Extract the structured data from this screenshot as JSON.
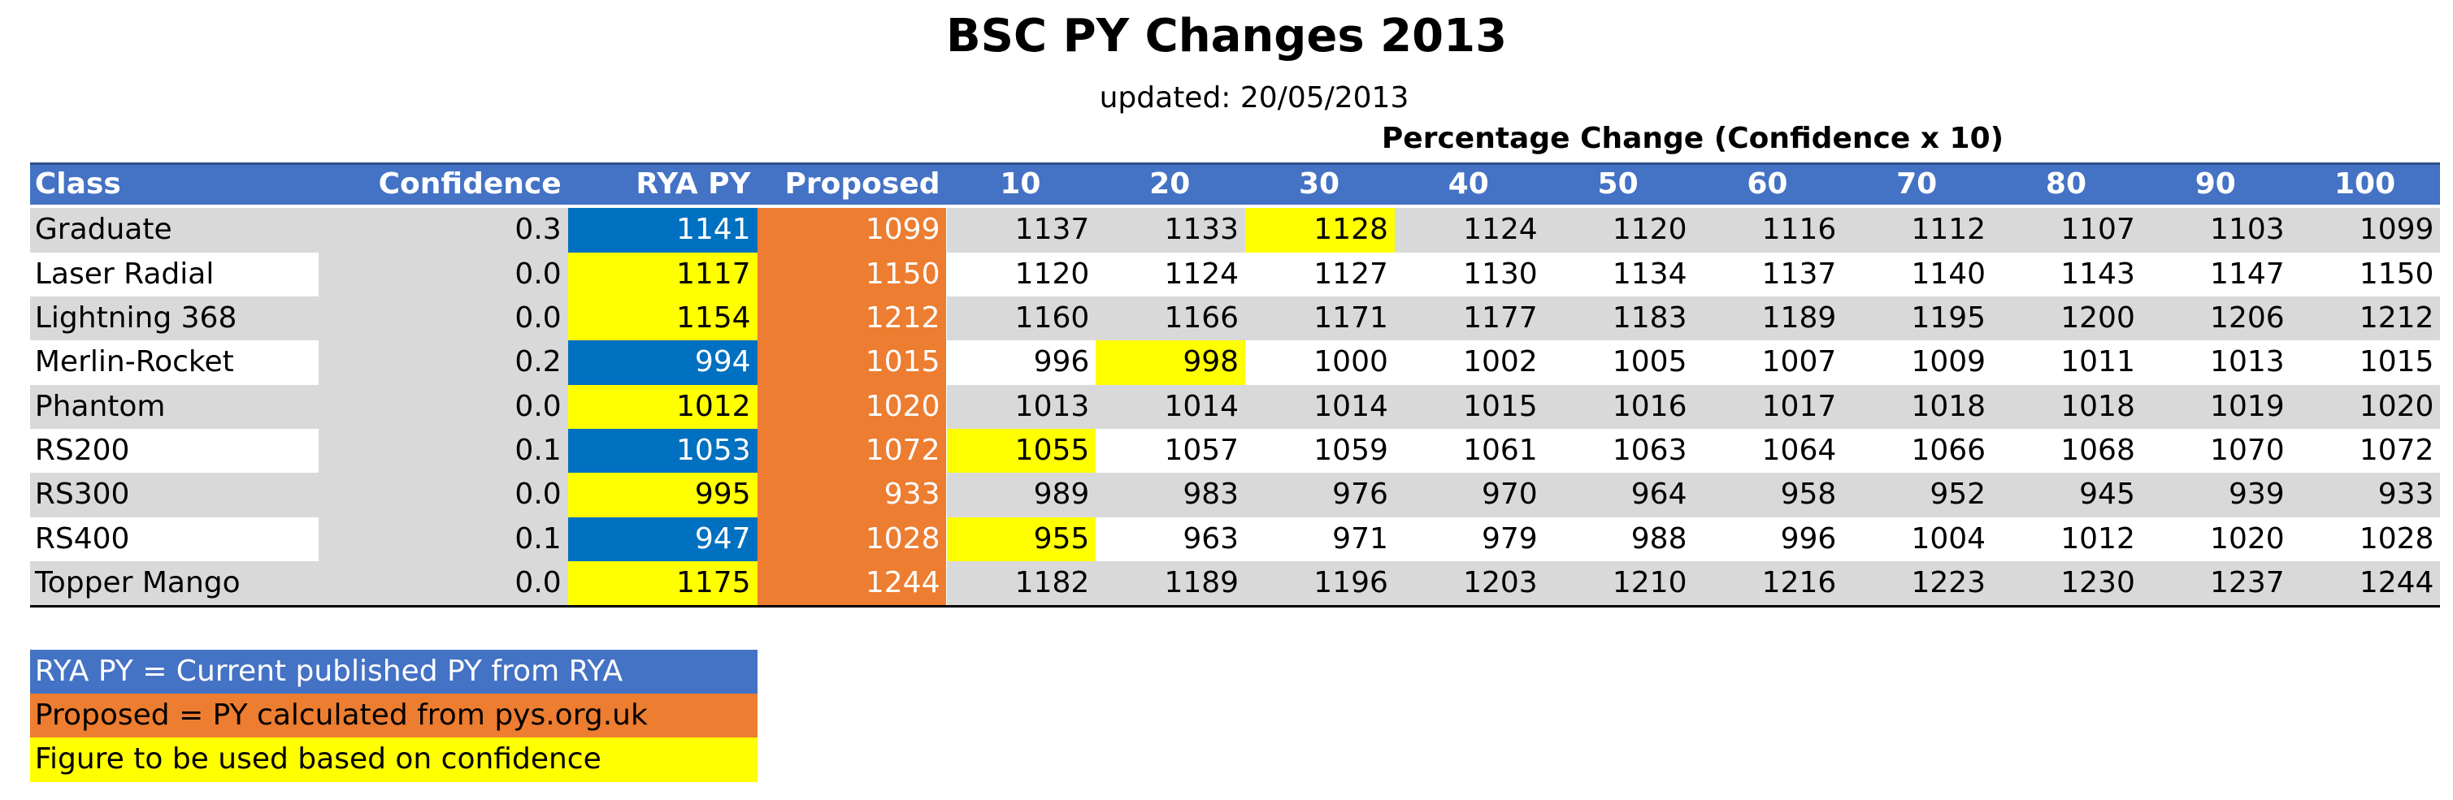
{
  "title": "BSC PY Changes 2013",
  "subtitle": "updated: 20/05/2013",
  "group_header": "Percentage Change (Confidence x 10)",
  "table": {
    "columns": [
      "Class",
      "Confidence",
      "RYA PY",
      "Proposed",
      "10",
      "20",
      "30",
      "40",
      "50",
      "60",
      "70",
      "80",
      "90",
      "100"
    ],
    "rows": [
      [
        "Graduate",
        "0.3",
        "1141",
        "1099",
        "1137",
        "1133",
        "1128",
        "1124",
        "1120",
        "1116",
        "1112",
        "1107",
        "1103",
        "1099"
      ],
      [
        "Laser Radial",
        "0.0",
        "1117",
        "1150",
        "1120",
        "1124",
        "1127",
        "1130",
        "1134",
        "1137",
        "1140",
        "1143",
        "1147",
        "1150"
      ],
      [
        "Lightning 368",
        "0.0",
        "1154",
        "1212",
        "1160",
        "1166",
        "1171",
        "1177",
        "1183",
        "1189",
        "1195",
        "1200",
        "1206",
        "1212"
      ],
      [
        "Merlin-Rocket",
        "0.2",
        "994",
        "1015",
        "996",
        "998",
        "1000",
        "1002",
        "1005",
        "1007",
        "1009",
        "1011",
        "1013",
        "1015"
      ],
      [
        "Phantom",
        "0.0",
        "1012",
        "1020",
        "1013",
        "1014",
        "1014",
        "1015",
        "1016",
        "1017",
        "1018",
        "1018",
        "1019",
        "1020"
      ],
      [
        "RS200",
        "0.1",
        "1053",
        "1072",
        "1055",
        "1057",
        "1059",
        "1061",
        "1063",
        "1064",
        "1066",
        "1068",
        "1070",
        "1072"
      ],
      [
        "RS300",
        "0.0",
        "995",
        "933",
        "989",
        "983",
        "976",
        "970",
        "964",
        "958",
        "952",
        "945",
        "939",
        "933"
      ],
      [
        "RS400",
        "0.1",
        "947",
        "1028",
        "955",
        "963",
        "971",
        "979",
        "988",
        "996",
        "1004",
        "1012",
        "1020",
        "1028"
      ],
      [
        "Topper Mango",
        "0.0",
        "1175",
        "1244",
        "1182",
        "1189",
        "1196",
        "1203",
        "1210",
        "1216",
        "1223",
        "1230",
        "1237",
        "1244"
      ]
    ]
  },
  "legend": [
    "RYA PY = Current published PY from RYA",
    "Proposed = PY calculated from pys.org.uk",
    "Figure to be used based on confidence"
  ]
}
